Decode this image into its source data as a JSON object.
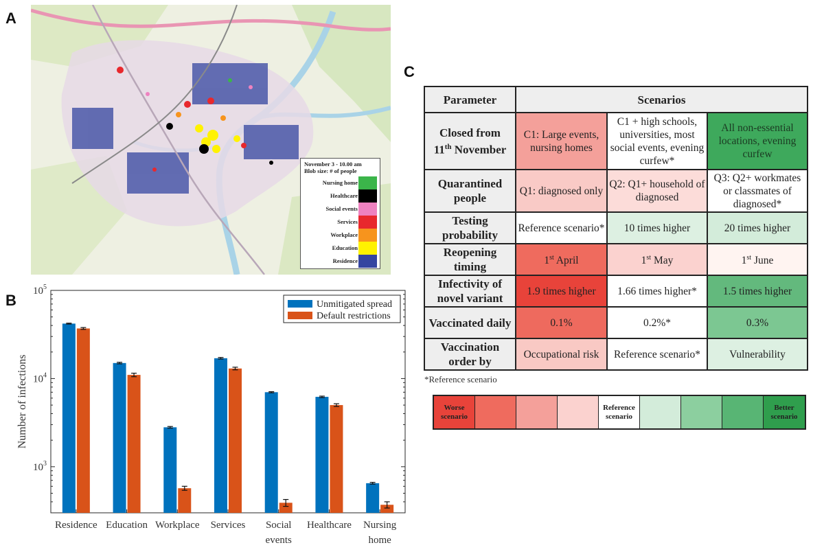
{
  "panels": {
    "a": "A",
    "b": "B",
    "c": "C"
  },
  "map": {
    "legend_title": "November 3 - 10.00 am",
    "legend_subtitle": "Blob size: # of people",
    "legend": [
      {
        "label": "Nursing home",
        "color": "#3bb54a"
      },
      {
        "label": "Healthcare",
        "color": "#000000"
      },
      {
        "label": "Social events",
        "color": "#ee82c0"
      },
      {
        "label": "Services",
        "color": "#e8282d"
      },
      {
        "label": "Workplace",
        "color": "#f7941d"
      },
      {
        "label": "Education",
        "color": "#fff200"
      },
      {
        "label": "Residence",
        "color": "#3545a0"
      }
    ]
  },
  "chart_data": {
    "type": "bar",
    "ylabel": "Number of infections",
    "yscale": "log",
    "ylim": [
      300,
      100000
    ],
    "y_ticks": [
      {
        "value": 1000,
        "base": "10",
        "exp": "3"
      },
      {
        "value": 10000,
        "base": "10",
        "exp": "4"
      },
      {
        "value": 100000,
        "base": "10",
        "exp": "5"
      }
    ],
    "categories": [
      [
        "Residence"
      ],
      [
        "Education"
      ],
      [
        "Workplace"
      ],
      [
        "Services"
      ],
      [
        "Social",
        "events"
      ],
      [
        "Healthcare"
      ],
      [
        "Nursing",
        "home"
      ]
    ],
    "series": [
      {
        "name": "Unmitigated spread",
        "color": "#0072bd",
        "values": [
          42000,
          15000,
          2800,
          17000,
          7000,
          6200,
          650
        ],
        "errors": [
          500,
          300,
          60,
          350,
          100,
          120,
          15
        ]
      },
      {
        "name": "Default restrictions",
        "color": "#d95319",
        "values": [
          37000,
          11000,
          570,
          13000,
          390,
          5000,
          370
        ],
        "errors": [
          900,
          500,
          30,
          450,
          35,
          180,
          30
        ]
      }
    ],
    "legend_position": "top-right",
    "grid": false
  },
  "table": {
    "header": {
      "parameter": "Parameter",
      "scenarios": "Scenarios"
    },
    "rows": [
      {
        "param": [
          "Closed from",
          "11",
          "th",
          " November"
        ],
        "cells": [
          {
            "text": "C1: Large events, nursing homes",
            "color": "#f4a09a"
          },
          {
            "text": "C1 + high schools, universities, most social events, evening curfew*",
            "color": "#ffffff"
          },
          {
            "text": "All non-essential locations, evening curfew",
            "color": "#3ea95c"
          }
        ]
      },
      {
        "param": [
          "Quarantined people"
        ],
        "cells": [
          {
            "text": "Q1: diagnosed only",
            "color": "#f9cac6"
          },
          {
            "text": "Q2: Q1+ household of diagnosed",
            "color": "#fcdcd9"
          },
          {
            "text": "Q3: Q2+ workmates or classmates of diagnosed*",
            "color": "#ffffff"
          }
        ]
      },
      {
        "param": [
          "Testing probability"
        ],
        "cells": [
          {
            "text": "Reference scenario*",
            "color": "#ffffff"
          },
          {
            "text": "10 times higher",
            "color": "#ddf0e2"
          },
          {
            "text": "20 times higher",
            "color": "#d3ecda"
          }
        ]
      },
      {
        "param": [
          "Reopening timing"
        ],
        "cells": [
          {
            "sup_num": "1",
            "sup": "st",
            "rest": " April",
            "color": "#ef6b5e"
          },
          {
            "sup_num": "1",
            "sup": "st",
            "rest": " May",
            "color": "#fbd2cf"
          },
          {
            "sup_num": "1",
            "sup": "st",
            "rest": " June",
            "color": "#fff4f1"
          }
        ]
      },
      {
        "param": [
          "Infectivity of novel variant"
        ],
        "cells": [
          {
            "text": "1.9 times higher",
            "color": "#e8433a"
          },
          {
            "text": "1.66 times higher*",
            "color": "#ffffff"
          },
          {
            "text": "1.5 times higher",
            "color": "#63b97d"
          }
        ]
      },
      {
        "param": [
          "Vaccinated daily"
        ],
        "cells": [
          {
            "text": "0.1%",
            "color": "#ee6a5e"
          },
          {
            "text": "0.2%*",
            "color": "#ffffff"
          },
          {
            "text": "0.3%",
            "color": "#7cc792"
          }
        ]
      },
      {
        "param": [
          "Vaccination order by"
        ],
        "cells": [
          {
            "text": "Occupational risk",
            "color": "#f9c9c4"
          },
          {
            "text": "Reference scenario*",
            "color": "#ffffff"
          },
          {
            "text": "Vulnerability",
            "color": "#ddf0e2"
          }
        ]
      }
    ],
    "footnote": "*Reference scenario"
  },
  "scale": [
    {
      "label": "Worse scenario",
      "color": "#e8433a"
    },
    {
      "label": "",
      "color": "#ef6b5e"
    },
    {
      "label": "",
      "color": "#f4a09a"
    },
    {
      "label": "",
      "color": "#fbd2cf"
    },
    {
      "label": "Reference scenario",
      "color": "#ffffff"
    },
    {
      "label": "",
      "color": "#d3ecda"
    },
    {
      "label": "",
      "color": "#8ccf9f"
    },
    {
      "label": "",
      "color": "#58b574"
    },
    {
      "label": "Better scenario",
      "color": "#2f9e4d"
    }
  ]
}
